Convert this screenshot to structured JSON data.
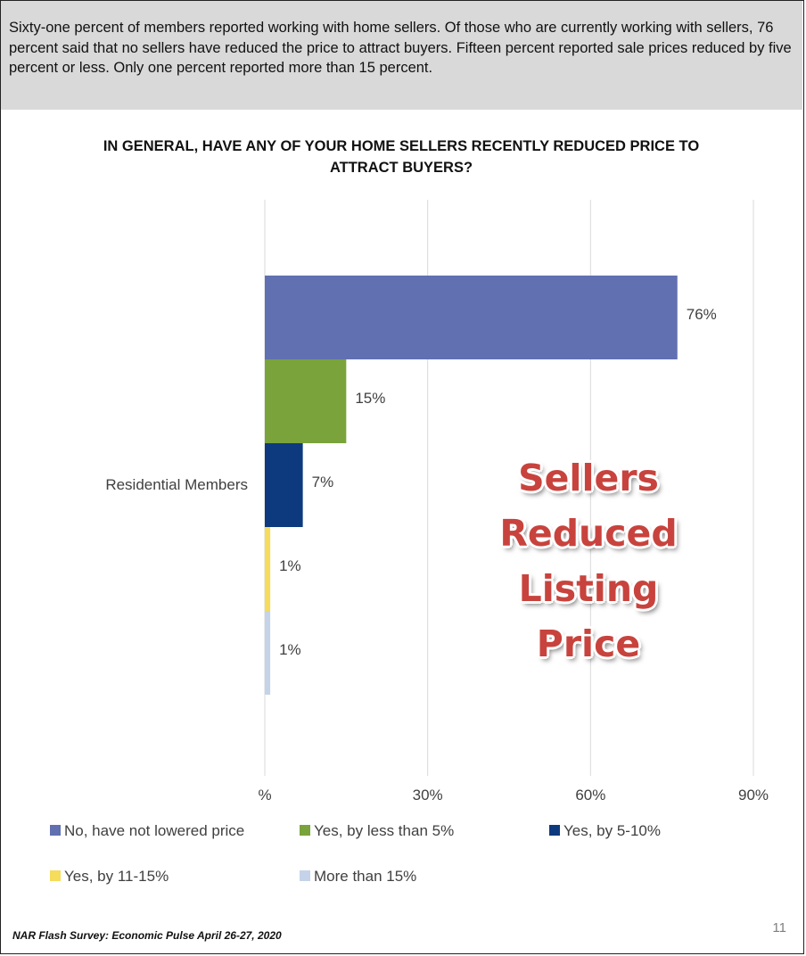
{
  "summary": {
    "text": "Sixty-one percent of members reported working with home sellers. Of those who are currently working with sellers, 76 percent said that no sellers have reduced the price to attract buyers. Fifteen percent reported sale prices reduced by five percent or less. Only one percent reported more than 15 percent."
  },
  "overlay": {
    "lines": [
      "Sellers",
      "Reduced",
      "Listing",
      "Price"
    ]
  },
  "footer": {
    "source": "NAR Flash Survey: Economic Pulse April 26-27, 2020",
    "page_number": "11"
  },
  "chart_data": {
    "type": "bar",
    "orientation": "horizontal",
    "title": "IN GENERAL, HAVE ANY OF YOUR HOME SELLERS RECENTLY REDUCED PRICE TO ATTRACT BUYERS?",
    "categories": [
      "Residential Members"
    ],
    "series": [
      {
        "name": "No, have not lowered price",
        "values": [
          76
        ],
        "label": "76%",
        "color": "#6170b0"
      },
      {
        "name": "Yes, by less than 5%",
        "values": [
          15
        ],
        "label": "15%",
        "color": "#7aa33b"
      },
      {
        "name": "Yes, by 5-10%",
        "values": [
          7
        ],
        "label": "7%",
        "color": "#0d3a7e"
      },
      {
        "name": "Yes, by 11-15%",
        "values": [
          1
        ],
        "label": "1%",
        "color": "#f5dc5a"
      },
      {
        "name": "More than 15%",
        "values": [
          1
        ],
        "label": "1%",
        "color": "#c5d3e8"
      }
    ],
    "xlim": [
      0,
      90
    ],
    "xticks": [
      0,
      30,
      60,
      90
    ],
    "xtick_labels": [
      "%",
      "30%",
      "60%",
      "90%"
    ],
    "grid": true,
    "legend_position": "bottom"
  }
}
